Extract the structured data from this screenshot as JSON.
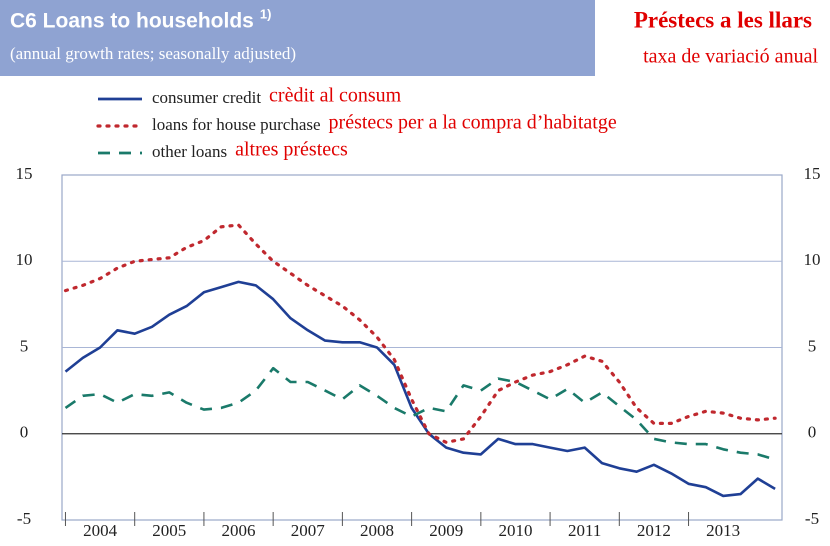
{
  "chart_data": {
    "type": "line",
    "title": "C6 Loans to households",
    "title_note": "1)",
    "subtitle": "(annual growth rates; seasonally adjusted)",
    "title_ca": "Préstecs a les llars",
    "subtitle_ca": "taxa de variació anual",
    "categories": [
      "2004",
      "2005",
      "2006",
      "2007",
      "2008",
      "2009",
      "2010",
      "2011",
      "2012",
      "2013"
    ],
    "xticks": [
      2004,
      2005,
      2006,
      2007,
      2008,
      2009,
      2010,
      2011,
      2012,
      2013
    ],
    "xlim": [
      2003.95,
      2014.35
    ],
    "x": [
      2004,
      2004.25,
      2004.5,
      2004.75,
      2005,
      2005.25,
      2005.5,
      2005.75,
      2006,
      2006.25,
      2006.5,
      2006.75,
      2007,
      2007.25,
      2007.5,
      2007.75,
      2008,
      2008.25,
      2008.5,
      2008.75,
      2009,
      2009.25,
      2009.5,
      2009.75,
      2010,
      2010.25,
      2010.5,
      2010.75,
      2011,
      2011.25,
      2011.5,
      2011.75,
      2012,
      2012.25,
      2012.5,
      2012.75,
      2013,
      2013.25,
      2013.5,
      2013.75,
      2014,
      2014.25
    ],
    "ylim": [
      -5,
      15
    ],
    "yticks": [
      -5,
      0,
      5,
      10,
      15
    ],
    "y2lim": [
      -5,
      15
    ],
    "y2ticks": [
      -5,
      0,
      5,
      10,
      15
    ],
    "grid": true,
    "series": [
      {
        "name": "consumer credit",
        "name_ca": "crèdit al consum",
        "color": "#1f3f95",
        "dash": "solid",
        "values": [
          3.6,
          4.4,
          5.0,
          6.0,
          5.8,
          6.2,
          6.9,
          7.4,
          8.2,
          8.5,
          8.8,
          8.6,
          7.8,
          6.7,
          6.0,
          5.4,
          5.3,
          5.3,
          5.0,
          4.0,
          1.5,
          0.0,
          -0.8,
          -1.1,
          -1.2,
          -0.3,
          -0.6,
          -0.6,
          -0.8,
          -1.0,
          -0.8,
          -1.7,
          -2.0,
          -2.2,
          -1.8,
          -2.3,
          -2.9,
          -3.1,
          -3.6,
          -3.5,
          -2.6,
          -3.2
        ]
      },
      {
        "name": "loans for house purchase",
        "name_ca": "préstecs per a la compra d’habitatge",
        "color": "#c0282e",
        "dash": "dotted",
        "values": [
          8.3,
          8.6,
          9.0,
          9.6,
          10.0,
          10.1,
          10.2,
          10.8,
          11.2,
          12.0,
          12.1,
          11.0,
          10.0,
          9.3,
          8.6,
          8.0,
          7.4,
          6.6,
          5.6,
          4.3,
          2.0,
          0.0,
          -0.5,
          -0.3,
          1.0,
          2.5,
          3.0,
          3.4,
          3.6,
          4.0,
          4.5,
          4.2,
          3.0,
          1.5,
          0.6,
          0.6,
          1.0,
          1.3,
          1.2,
          0.9,
          0.8,
          0.9
        ]
      },
      {
        "name": "other loans",
        "name_ca": "altres préstecs",
        "color": "#1a7a6a",
        "dash": "dashed",
        "values": [
          1.5,
          2.2,
          2.3,
          1.8,
          2.3,
          2.2,
          2.4,
          1.8,
          1.4,
          1.5,
          1.8,
          2.5,
          3.8,
          3.0,
          3.0,
          2.5,
          2.0,
          2.8,
          2.2,
          1.5,
          1.0,
          1.5,
          1.3,
          2.8,
          2.5,
          3.2,
          3.0,
          2.5,
          2.0,
          2.6,
          1.8,
          2.4,
          1.6,
          0.8,
          -0.3,
          -0.5,
          -0.6,
          -0.6,
          -0.9,
          -1.1,
          -1.2,
          -1.5
        ]
      }
    ]
  }
}
